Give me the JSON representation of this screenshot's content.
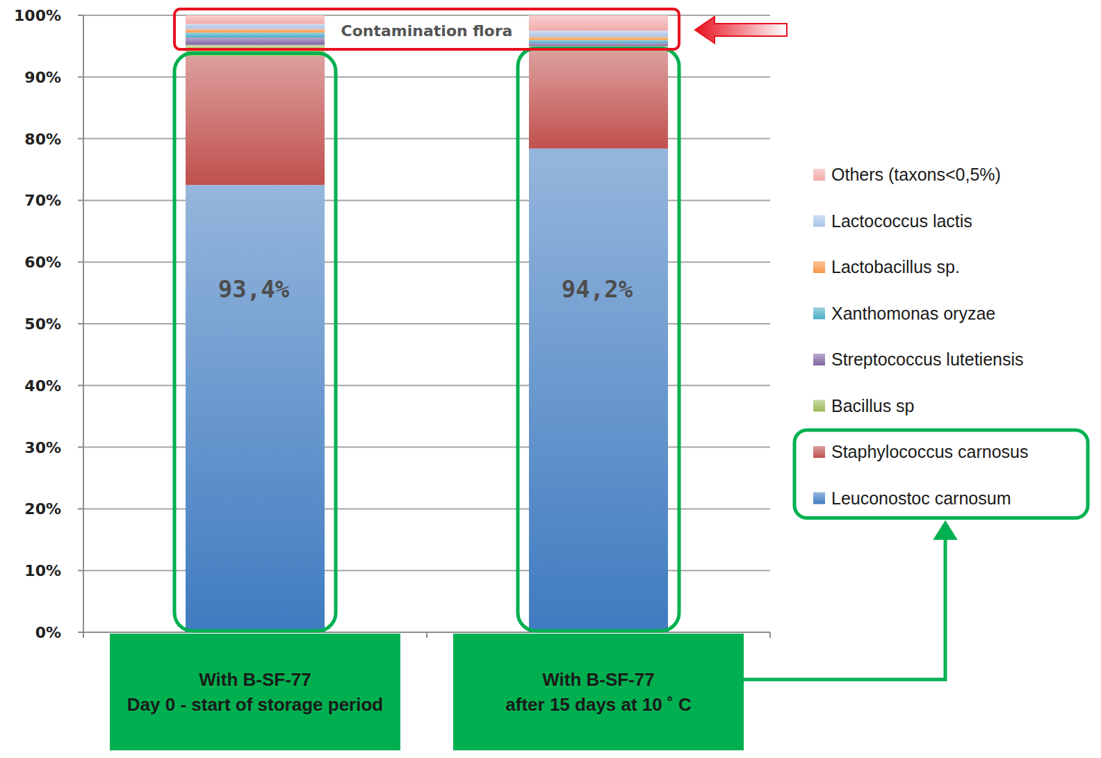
{
  "chart_data": {
    "type": "bar",
    "stacked": true,
    "grid": true,
    "legend": "right",
    "categories": [
      "With B-SF-77\nDay 0 - start of storage period",
      "With B-SF-77\nafter 15 days at 10 ˚ C"
    ],
    "series": [
      {
        "name": "Leuconostoc carnosum",
        "color": "#3f7bc0",
        "values": [
          72.5,
          78.4
        ]
      },
      {
        "name": "Staphylococcus carnosus",
        "color": "#c0504d",
        "values": [
          20.9,
          15.8
        ]
      },
      {
        "name": "Bacillus sp",
        "color": "#9bbb59",
        "values": [
          1.8,
          0.8
        ]
      },
      {
        "name": "Streptococcus lutetiensis",
        "color": "#8064a2",
        "values": [
          1.2,
          0.5
        ]
      },
      {
        "name": "Xanthomonas oryzae",
        "color": "#4bacc6",
        "values": [
          0.8,
          0.5
        ]
      },
      {
        "name": "Lactobacillus sp.",
        "color": "#f79646",
        "values": [
          0.6,
          0.5
        ]
      },
      {
        "name": "Lactococcus lactis",
        "color": "#a9c3e8",
        "values": [
          0.8,
          1.0
        ]
      },
      {
        "name": "Others (taxons<0,5%)",
        "color": "#f2aaaa",
        "values": [
          1.4,
          2.5
        ]
      }
    ],
    "ylim": [
      0,
      100
    ],
    "yticks": [
      {
        "value": 0,
        "label": "0%"
      },
      {
        "value": 10,
        "label": "10%"
      },
      {
        "value": 20,
        "label": "20%"
      },
      {
        "value": 30,
        "label": "30%"
      },
      {
        "value": 40,
        "label": "40%"
      },
      {
        "value": 50,
        "label": "50%"
      },
      {
        "value": 60,
        "label": "60%"
      },
      {
        "value": 70,
        "label": "70%"
      },
      {
        "value": 80,
        "label": "80%"
      },
      {
        "value": 90,
        "label": "90%"
      },
      {
        "value": 100,
        "label": "100%"
      }
    ],
    "annotations": [
      "Contamination flora",
      "93,4%",
      "94,2%"
    ]
  }
}
